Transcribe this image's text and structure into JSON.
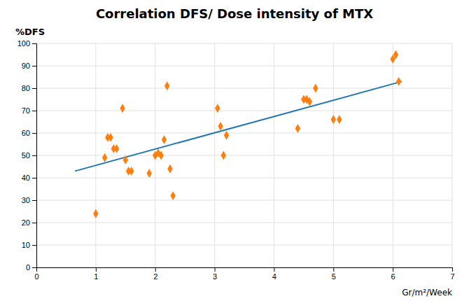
{
  "chart_data": {
    "type": "scatter",
    "title": "Correlation DFS/ Dose intensity of MTX",
    "xlabel": "Gr/m²/Week",
    "ylabel": "%DFS",
    "xlim": [
      0,
      7
    ],
    "ylim": [
      0,
      100
    ],
    "xticks": [
      0,
      1,
      2,
      3,
      4,
      5,
      6,
      7
    ],
    "yticks": [
      0,
      10,
      20,
      30,
      40,
      50,
      60,
      70,
      80,
      90,
      100
    ],
    "grid": true,
    "series": [
      {
        "type": "line",
        "x": [
          0.65,
          6.15
        ],
        "values": [
          43,
          83
        ]
      },
      {
        "type": "scatter",
        "marker": "diamond",
        "x": [
          1.0,
          1.15,
          1.2,
          1.25,
          1.3,
          1.35,
          1.45,
          1.5,
          1.55,
          1.6,
          1.9,
          2.0,
          2.05,
          2.1,
          2.15,
          2.2,
          2.25,
          2.3,
          3.05,
          3.1,
          3.15,
          3.2,
          4.4,
          4.5,
          4.55,
          4.6,
          4.7,
          5.0,
          5.1,
          6.0,
          6.05,
          6.1
        ],
        "values": [
          24,
          49,
          58,
          58,
          53,
          53,
          71,
          48,
          43,
          43,
          42,
          50,
          51,
          50,
          57,
          81,
          44,
          32,
          71,
          63,
          50,
          59,
          62,
          75,
          75,
          74,
          80,
          66,
          66,
          93,
          95,
          83
        ]
      }
    ]
  }
}
